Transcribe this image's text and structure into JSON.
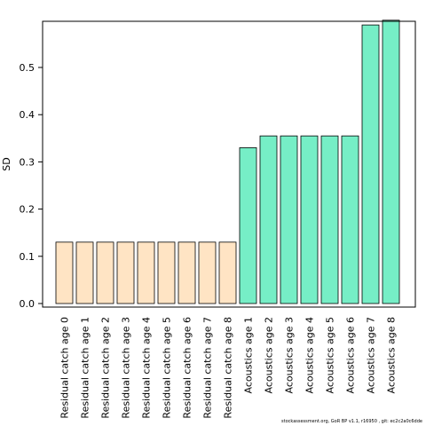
{
  "chart_data": {
    "type": "bar",
    "ylabel": "SD",
    "xlabel": "",
    "title": "",
    "ylim": [
      0,
      0.6
    ],
    "yticks": [
      0.0,
      0.1,
      0.2,
      0.3,
      0.4,
      0.5
    ],
    "ytick_labels": [
      "0.0",
      "0.1",
      "0.2",
      "0.3",
      "0.4",
      "0.5"
    ],
    "grid": false,
    "categories": [
      "Residual catch age 0",
      "Residual catch age 1",
      "Residual catch age 2",
      "Residual catch age 3",
      "Residual catch age 4",
      "Residual catch age 5",
      "Residual catch age 6",
      "Residual catch age 7",
      "Residual catch age 8",
      "Acoustics age 1",
      "Acoustics age 2",
      "Acoustics age 3",
      "Acoustics age 4",
      "Acoustics age 5",
      "Acoustics age 6",
      "Acoustics age 7",
      "Acoustics age 8"
    ],
    "values": [
      0.13,
      0.13,
      0.13,
      0.13,
      0.13,
      0.13,
      0.13,
      0.13,
      0.13,
      0.33,
      0.355,
      0.355,
      0.355,
      0.355,
      0.355,
      0.59,
      0.6
    ],
    "bar_colors": [
      "#ffe4c4",
      "#ffe4c4",
      "#ffe4c4",
      "#ffe4c4",
      "#ffe4c4",
      "#ffe4c4",
      "#ffe4c4",
      "#ffe4c4",
      "#ffe4c4",
      "#76eec6",
      "#76eec6",
      "#76eec6",
      "#76eec6",
      "#76eec6",
      "#76eec6",
      "#76eec6",
      "#76eec6"
    ]
  },
  "footer": {
    "text": "stockassessment.org, GoR BP v1.1, r16950 , git: ec2c2a0c6dde"
  }
}
